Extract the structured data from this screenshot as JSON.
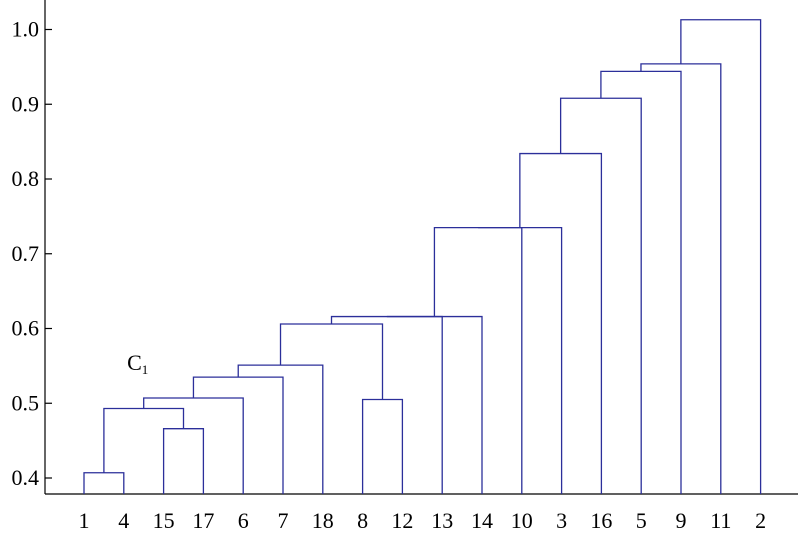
{
  "chart_data": {
    "type": "dendrogram",
    "title": "",
    "xlabel": "",
    "ylabel": "",
    "ylim": [
      0.375,
      1.04
    ],
    "yticks": [
      "0.4",
      "0.5",
      "0.6",
      "0.7",
      "0.8",
      "0.9",
      "1.0"
    ],
    "leaf_order": [
      "1",
      "4",
      "15",
      "17",
      "6",
      "7",
      "18",
      "8",
      "12",
      "13",
      "14",
      "10",
      "3",
      "16",
      "5",
      "9",
      "11",
      "2"
    ],
    "line_color": "#2b2f9a",
    "merges": [
      {
        "id": "m1",
        "left": "1",
        "right": "4",
        "height": 0.407
      },
      {
        "id": "m2",
        "left": "15",
        "right": "17",
        "height": 0.466
      },
      {
        "id": "m3",
        "left": "m1",
        "right": "m2",
        "height": 0.493
      },
      {
        "id": "m4",
        "left": "m3",
        "right": "6",
        "height": 0.507
      },
      {
        "id": "m5",
        "left": "m4",
        "right": "7",
        "height": 0.535
      },
      {
        "id": "m6",
        "left": "m5",
        "right": "18",
        "height": 0.551
      },
      {
        "id": "m7",
        "left": "8",
        "right": "12",
        "height": 0.505
      },
      {
        "id": "m8",
        "left": "m6",
        "right": "m7",
        "height": 0.606
      },
      {
        "id": "m9",
        "left": "m8",
        "right": "13",
        "height": 0.616
      },
      {
        "id": "m10",
        "left": "m9",
        "right": "14",
        "height": 0.616
      },
      {
        "id": "m11",
        "left": "m10",
        "right": "10",
        "height": 0.735
      },
      {
        "id": "m12",
        "left": "m11",
        "right": "3",
        "height": 0.735
      },
      {
        "id": "m13",
        "left": "m12",
        "right": "16",
        "height": 0.834
      },
      {
        "id": "m14",
        "left": "m13",
        "right": "5",
        "height": 0.908
      },
      {
        "id": "m15",
        "left": "m14",
        "right": "9",
        "height": 0.944
      },
      {
        "id": "m16",
        "left": "m15",
        "right": "11",
        "height": 0.954
      },
      {
        "id": "m17",
        "left": "m16",
        "right": "2",
        "height": 1.013
      }
    ],
    "annotations": [
      {
        "text": "C",
        "subscript": "1",
        "near": "m3",
        "value": 0.555
      }
    ]
  }
}
